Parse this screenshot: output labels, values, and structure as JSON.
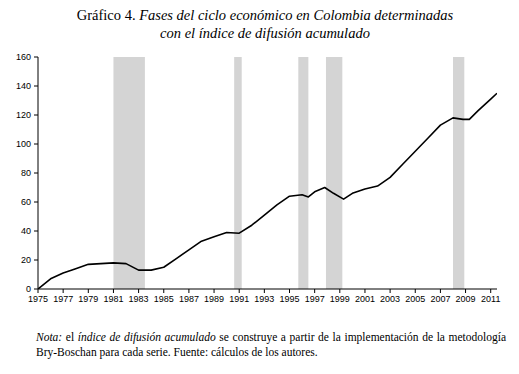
{
  "chart_data": {
    "type": "line",
    "title": "Gráfico 4.",
    "subtitle": [
      "Fases del ciclo económico en Colombia determinadas",
      "con el índice de difusión acumulado"
    ],
    "x": [
      1975,
      1976,
      1977,
      1978,
      1979,
      1980,
      1981,
      1982,
      1983,
      1984,
      1985,
      1986,
      1987,
      1988,
      1989,
      1990,
      1991,
      1992,
      1993,
      1994,
      1995,
      1996,
      1996.5,
      1997,
      1997.8,
      1998.5,
      1999.3,
      2000,
      2001,
      2002,
      2003,
      2004,
      2005,
      2006,
      2007,
      2008,
      2008.8,
      2009.3,
      2010,
      2011,
      2011.5
    ],
    "values": [
      0,
      7,
      11,
      14,
      17,
      17.5,
      18,
      17.5,
      13,
      13,
      15,
      21,
      27,
      33,
      36,
      39,
      38.5,
      44,
      51,
      58,
      64,
      65,
      63.5,
      67,
      70,
      66,
      62,
      66,
      69,
      71,
      77,
      86,
      95,
      104,
      113,
      118,
      117,
      117,
      123,
      131,
      135
    ],
    "color": "#000000",
    "shaded_periods": [
      [
        1981,
        1983.5
      ],
      [
        1990.6,
        1991.2
      ],
      [
        1995.7,
        1996.5
      ],
      [
        1997.9,
        1999.2
      ],
      [
        2008,
        2008.9
      ]
    ],
    "xlim": [
      1975,
      2011.5
    ],
    "xticks": [
      1975,
      1977,
      1979,
      1981,
      1983,
      1985,
      1987,
      1989,
      1991,
      1993,
      1995,
      1997,
      1999,
      2001,
      2003,
      2005,
      2007,
      2009,
      2011
    ],
    "ylim": [
      0,
      160
    ],
    "yticks": [
      0,
      20,
      40,
      60,
      80,
      100,
      120,
      140,
      160
    ],
    "grid": false,
    "note": {
      "label": "Nota:",
      "parts": [
        "el",
        "índice de difusión acumulado",
        "se construye a partir de la implementación de la metodología Bry-Boschan para cada serie. Fuente: cálculos de los autores."
      ]
    }
  }
}
